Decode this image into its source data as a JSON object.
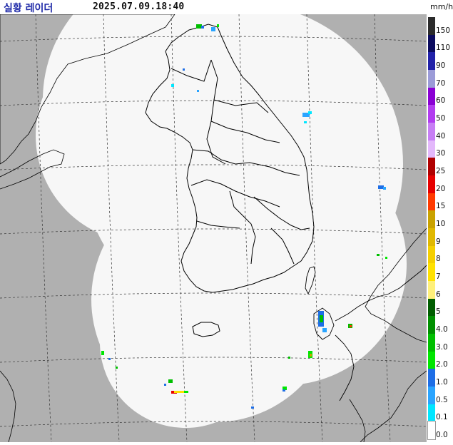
{
  "header": {
    "title": "실황 레이더",
    "timestamp": "2025.07.09.18:40",
    "unit": "mm/h"
  },
  "map": {
    "ocean_color": "#b0b0b0",
    "radar_coverage_color": "#f7f7f7",
    "land_outline_color": "#000000",
    "grid_color": "#333333",
    "echoes": [
      {
        "area": "north-border",
        "intensity": 1.0
      },
      {
        "area": "central-west",
        "intensity": 1.0
      },
      {
        "area": "east-coast",
        "intensity": 0.5
      },
      {
        "area": "east-sea",
        "intensity": 0.5
      },
      {
        "area": "south-coast",
        "intensity": 2.0
      },
      {
        "area": "tsushima-strait",
        "intensity": 1.0
      },
      {
        "area": "jeju-south",
        "intensity": 3.0
      }
    ]
  },
  "legend": {
    "items": [
      {
        "label": "150",
        "color": "#2b2b2b"
      },
      {
        "label": "110",
        "color": "#0b0b5e"
      },
      {
        "label": "90",
        "color": "#2121a8"
      },
      {
        "label": "70",
        "color": "#9b9bd8"
      },
      {
        "label": "60",
        "color": "#8a00d4"
      },
      {
        "label": "50",
        "color": "#b23cf0"
      },
      {
        "label": "40",
        "color": "#c77ef5"
      },
      {
        "label": "30",
        "color": "#e3b8fb"
      },
      {
        "label": "25",
        "color": "#b00000"
      },
      {
        "label": "20",
        "color": "#e60000"
      },
      {
        "label": "15",
        "color": "#ff3a00"
      },
      {
        "label": "10",
        "color": "#c9a200"
      },
      {
        "label": "9",
        "color": "#e0b800"
      },
      {
        "label": "8",
        "color": "#f5cf00"
      },
      {
        "label": "7",
        "color": "#ffe100"
      },
      {
        "label": "6",
        "color": "#fff07a"
      },
      {
        "label": "5",
        "color": "#005d00"
      },
      {
        "label": "4.0",
        "color": "#008f00"
      },
      {
        "label": "3.0",
        "color": "#00bf00"
      },
      {
        "label": "2.0",
        "color": "#00e600"
      },
      {
        "label": "1.0",
        "color": "#1e6ee6"
      },
      {
        "label": "0.5",
        "color": "#2aa4ff"
      },
      {
        "label": "0.1",
        "color": "#00e6ff"
      },
      {
        "label": "0.0",
        "color": "#ffffff"
      }
    ]
  }
}
